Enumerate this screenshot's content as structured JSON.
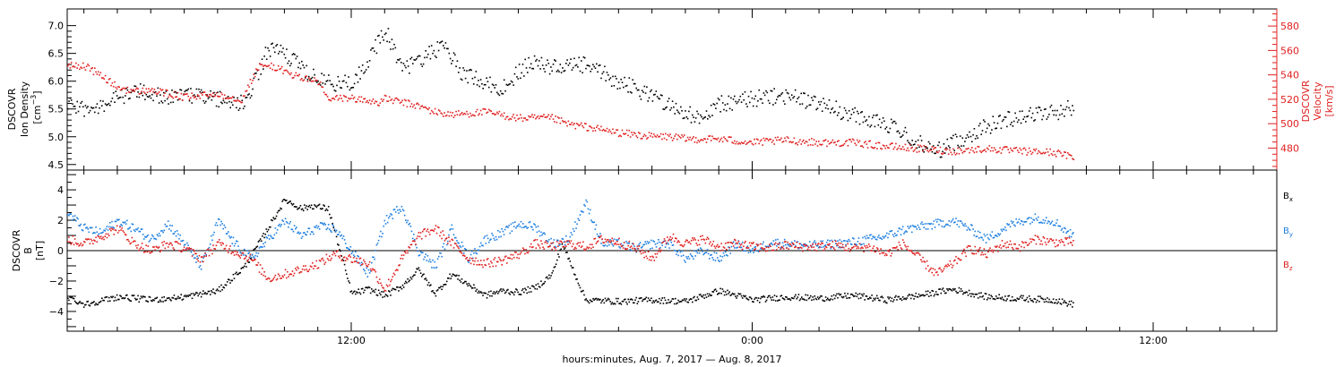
{
  "figure": {
    "xlabel": "hours:minutes, Aug.  7, 2017 — Aug.  8, 2017",
    "x_tick_labels": [
      "12:00",
      "0:00",
      "12:00"
    ]
  },
  "colors": {
    "axis": "#000000",
    "density": "#000000",
    "velocity": "#e02020",
    "bx": "#000000",
    "by": "#1f7fe0",
    "bz": "#e02020"
  },
  "chart_data": [
    {
      "type": "scatter",
      "panel": "top",
      "x_unit": "hours since Aug. 7, 2017 00:00",
      "xlim": [
        3.5,
        39.7
      ],
      "left_axis": {
        "label_lines": [
          "DSCOVR",
          "Ion Density"
        ],
        "unit_base": "[cm",
        "unit_sup": "−3",
        "unit_end": "]",
        "ylim": [
          4.4,
          7.3
        ],
        "ticks": [
          "4.5",
          "5.0",
          "5.5",
          "6.0",
          "6.5",
          "7.0"
        ]
      },
      "right_axis": {
        "label_lines": [
          "DSCOVR",
          "Velocity"
        ],
        "unit": "[km/s]",
        "ylim": [
          462,
          594
        ],
        "ticks": [
          "480",
          "500",
          "520",
          "540",
          "560",
          "580"
        ]
      },
      "series": [
        {
          "key": "density",
          "axis": "left",
          "x": [
            3.5,
            4.0,
            5.0,
            5.5,
            6.0,
            7.0,
            8.0,
            8.8,
            9.5,
            10.0,
            10.8,
            11.5,
            12.0,
            12.5,
            13.0,
            13.5,
            14.3,
            14.8,
            15.2,
            16.0,
            16.5,
            17.0,
            17.5,
            18.0,
            19.0,
            20.0,
            21.0,
            22.0,
            22.5,
            23.0,
            24.0,
            25.0,
            26.0,
            27.0,
            27.8,
            28.5,
            29.5,
            31.0,
            32.0,
            33.0,
            33.6
          ],
          "y": [
            5.6,
            5.5,
            5.7,
            5.85,
            5.75,
            5.75,
            5.7,
            5.6,
            6.6,
            6.5,
            6.1,
            5.95,
            6.0,
            6.4,
            6.95,
            6.2,
            6.5,
            6.7,
            6.2,
            6.0,
            5.85,
            6.2,
            6.35,
            6.25,
            6.3,
            6.0,
            5.75,
            5.45,
            5.3,
            5.6,
            5.7,
            5.75,
            5.6,
            5.4,
            5.3,
            5.05,
            4.75,
            5.2,
            5.4,
            5.45,
            5.55
          ],
          "spread": 0.15
        },
        {
          "key": "velocity",
          "axis": "right",
          "x": [
            3.5,
            4.0,
            4.5,
            5.0,
            5.5,
            6.0,
            7.0,
            8.0,
            8.7,
            9.2,
            9.6,
            10.0,
            10.5,
            11.0,
            11.3,
            11.8,
            12.3,
            12.8,
            13.0,
            13.5,
            14.0,
            14.5,
            15.0,
            16.0,
            17.0,
            18.0,
            18.5,
            19.0,
            20.0,
            21.0,
            21.5,
            22.0,
            23.0,
            24.0,
            25.0,
            26.0,
            27.0,
            28.0,
            29.0,
            30.0,
            31.0,
            32.0,
            33.0,
            33.6
          ],
          "y": [
            548,
            548,
            540,
            530,
            527,
            528,
            522,
            525,
            520,
            547,
            548,
            543,
            538,
            535,
            520,
            522,
            520,
            518,
            521,
            518,
            515,
            510,
            508,
            510,
            505,
            505,
            500,
            498,
            493,
            490,
            490,
            488,
            488,
            485,
            487,
            485,
            485,
            482,
            480,
            478,
            480,
            478,
            477,
            473
          ],
          "spread": 3
        }
      ]
    },
    {
      "type": "scatter",
      "panel": "bottom",
      "x_unit": "hours since Aug. 7, 2017 00:00",
      "xlim": [
        3.5,
        39.7
      ],
      "axis": {
        "label_lines": [
          "DSCOVR",
          "B"
        ],
        "unit": "[nT]",
        "ylim": [
          -5.3,
          5.3
        ],
        "ticks": [
          "4",
          "2",
          "0",
          "−2",
          "−4"
        ]
      },
      "legend_entries": [
        {
          "key": "bx",
          "base": "B",
          "sub": "x"
        },
        {
          "key": "by",
          "base": "B",
          "sub": "y"
        },
        {
          "key": "bz",
          "base": "B",
          "sub": "z"
        }
      ],
      "series": [
        {
          "key": "bx",
          "x": [
            3.5,
            4.0,
            5.0,
            6.0,
            7.0,
            8.0,
            8.8,
            9.3,
            10.0,
            10.5,
            10.8,
            11.3,
            12.0,
            12.5,
            13.0,
            13.5,
            14.0,
            14.5,
            15.0,
            16.0,
            16.5,
            17.0,
            17.5,
            18.0,
            18.3,
            19.0,
            20.0,
            21.0,
            22.0,
            23.0,
            24.0,
            25.0,
            26.0,
            27.0,
            28.0,
            29.0,
            30.0,
            31.0,
            32.0,
            33.0,
            33.6
          ],
          "y": [
            -3.0,
            -3.5,
            -3.0,
            -3.2,
            -3.0,
            -2.6,
            -1.0,
            0.8,
            3.4,
            2.8,
            3.0,
            2.8,
            -2.8,
            -2.5,
            -2.9,
            -2.3,
            -1.2,
            -2.8,
            -1.5,
            -2.9,
            -2.6,
            -2.7,
            -2.4,
            -1.5,
            0.5,
            -3.2,
            -3.3,
            -3.2,
            -3.3,
            -2.6,
            -3.2,
            -3.0,
            -3.1,
            -2.9,
            -3.2,
            -2.9,
            -2.5,
            -3.0,
            -3.1,
            -3.2,
            -3.5
          ],
          "spread": 0.2
        },
        {
          "key": "by",
          "x": [
            3.5,
            4.0,
            4.5,
            5.0,
            5.5,
            6.0,
            6.5,
            7.0,
            7.5,
            8.0,
            8.5,
            9.0,
            9.5,
            10.0,
            10.5,
            11.0,
            11.5,
            12.0,
            12.5,
            13.0,
            13.5,
            14.0,
            14.5,
            15.0,
            15.5,
            16.0,
            16.5,
            17.0,
            17.5,
            18.0,
            18.5,
            19.0,
            19.5,
            20.0,
            20.5,
            21.0,
            21.5,
            22.0,
            22.5,
            23.0,
            23.5,
            24.0,
            24.5,
            25.0,
            25.5,
            26.0,
            26.5,
            27.0,
            27.5,
            28.0,
            28.5,
            29.0,
            29.5,
            30.0,
            30.5,
            31.0,
            31.5,
            32.0,
            32.5,
            33.0,
            33.6
          ],
          "y": [
            2.5,
            1.5,
            1.2,
            2.0,
            1.5,
            0.8,
            1.8,
            0.5,
            -1.0,
            2.0,
            0.5,
            -0.5,
            0.8,
            2.0,
            1.0,
            1.6,
            1.5,
            0.0,
            -1.5,
            2.0,
            3.0,
            0.0,
            -1.0,
            1.5,
            -0.5,
            0.8,
            1.2,
            1.8,
            1.6,
            0.5,
            0.8,
            3.2,
            0.5,
            0.5,
            0.2,
            0.5,
            0.5,
            -0.5,
            0.0,
            -0.5,
            0.5,
            0.0,
            0.6,
            0.5,
            0.4,
            0.4,
            0.5,
            0.6,
            0.8,
            1.0,
            1.4,
            1.6,
            1.8,
            2.0,
            1.5,
            0.8,
            1.5,
            2.0,
            2.2,
            2.0,
            1.0
          ],
          "spread": 0.3
        },
        {
          "key": "bz",
          "x": [
            3.5,
            4.0,
            4.5,
            5.0,
            5.5,
            6.0,
            6.5,
            7.0,
            7.5,
            8.0,
            8.5,
            9.0,
            9.5,
            10.0,
            10.5,
            11.0,
            11.5,
            12.0,
            12.5,
            13.0,
            13.5,
            14.0,
            14.5,
            15.0,
            15.5,
            16.0,
            16.5,
            17.0,
            17.5,
            18.0,
            18.5,
            19.0,
            19.5,
            20.0,
            20.5,
            21.0,
            21.5,
            22.0,
            22.5,
            23.0,
            23.5,
            24.0,
            24.5,
            25.0,
            25.5,
            26.0,
            26.5,
            27.0,
            27.5,
            28.0,
            28.5,
            29.0,
            29.5,
            30.0,
            30.5,
            31.0,
            31.5,
            32.0,
            32.5,
            33.0,
            33.6
          ],
          "y": [
            0.8,
            0.5,
            1.0,
            1.5,
            0.5,
            0.0,
            0.5,
            0.2,
            -0.5,
            0.5,
            0.0,
            -0.5,
            -1.8,
            -1.5,
            -1.2,
            -0.8,
            -0.2,
            -0.5,
            -0.8,
            -2.5,
            -0.5,
            1.0,
            1.5,
            0.5,
            -0.5,
            -0.8,
            -0.6,
            -0.2,
            0.5,
            0.3,
            0.5,
            0.3,
            0.8,
            0.6,
            0.2,
            -0.5,
            1.0,
            0.5,
            0.8,
            0.3,
            0.5,
            0.3,
            0.2,
            0.4,
            0.3,
            0.3,
            0.4,
            0.2,
            0.3,
            -0.2,
            0.5,
            -0.5,
            -1.5,
            -0.8,
            0.2,
            -0.2,
            0.5,
            0.3,
            0.8,
            0.6,
            0.6
          ],
          "spread": 0.3
        }
      ]
    }
  ]
}
